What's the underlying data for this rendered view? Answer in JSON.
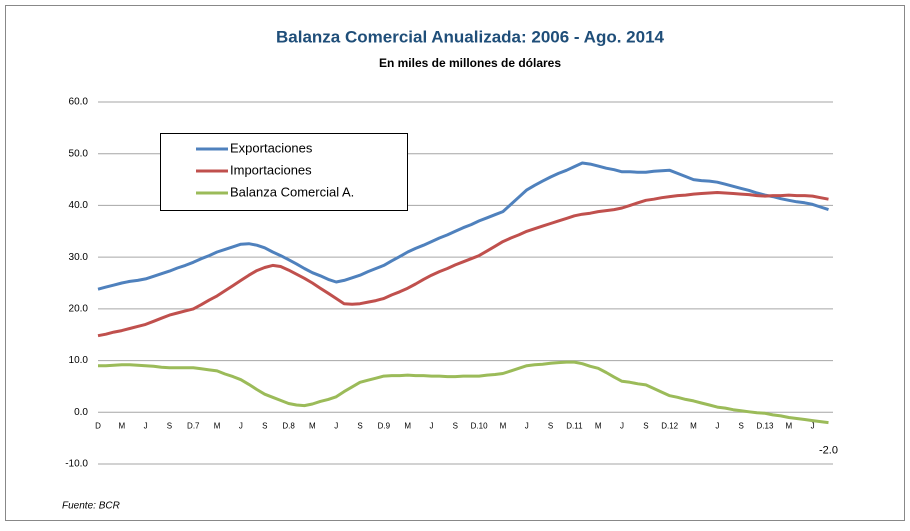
{
  "chart_data": {
    "type": "line",
    "title": "Balanza Comercial Anualizada: 2006 - Ago. 2014",
    "subtitle": "En miles de millones de dólares",
    "note": "Fuente: BCR",
    "categories": [
      "D",
      null,
      null,
      "M",
      null,
      null,
      "J",
      null,
      null,
      "S",
      null,
      null,
      "D.7",
      null,
      null,
      "M",
      null,
      null,
      "J",
      null,
      null,
      "S",
      null,
      null,
      "D.8",
      null,
      null,
      "M",
      null,
      null,
      "J",
      null,
      null,
      "S",
      null,
      null,
      "D.9",
      null,
      null,
      "M",
      null,
      null,
      "J",
      null,
      null,
      "S",
      null,
      null,
      "D.10",
      null,
      null,
      "M",
      null,
      null,
      "J",
      null,
      null,
      "S",
      null,
      null,
      "D.11",
      null,
      null,
      "M",
      null,
      null,
      "J",
      null,
      null,
      "S",
      null,
      null,
      "D.12",
      null,
      null,
      "M",
      null,
      null,
      "J",
      null,
      null,
      "S",
      null,
      null,
      "D.13",
      null,
      null,
      "M",
      null,
      null,
      "J",
      null,
      null
    ],
    "ylim": [
      -10,
      60
    ],
    "yticks": [
      {
        "value": -10,
        "label": "-10.0"
      },
      {
        "value": 0,
        "label": "0.0"
      },
      {
        "value": 10,
        "label": "10.0"
      },
      {
        "value": 20,
        "label": "20.0"
      },
      {
        "value": 30,
        "label": "30.0"
      },
      {
        "value": 40,
        "label": "40.0"
      },
      {
        "value": 50,
        "label": "50.0"
      },
      {
        "value": 60,
        "label": "60.0"
      }
    ],
    "grid": true,
    "legend": "upper left",
    "series": [
      {
        "name": "Exportaciones",
        "color": "#4f81bd",
        "values": [
          23.8,
          24.2,
          24.6,
          25.0,
          25.3,
          25.5,
          25.8,
          26.3,
          26.8,
          27.3,
          27.9,
          28.4,
          29.0,
          29.7,
          30.3,
          31.0,
          31.5,
          32.0,
          32.5,
          32.6,
          32.3,
          31.8,
          31.0,
          30.3,
          29.5,
          28.7,
          27.8,
          27.0,
          26.4,
          25.7,
          25.2,
          25.5,
          26.0,
          26.5,
          27.2,
          27.8,
          28.4,
          29.3,
          30.1,
          31.0,
          31.7,
          32.3,
          33.0,
          33.7,
          34.3,
          35.0,
          35.7,
          36.3,
          37.0,
          37.6,
          38.2,
          38.8,
          40.2,
          41.6,
          43.0,
          43.9,
          44.7,
          45.5,
          46.2,
          46.8,
          47.5,
          48.2,
          48.0,
          47.6,
          47.2,
          46.9,
          46.5,
          46.5,
          46.4,
          46.4,
          46.6,
          46.7,
          46.8,
          46.2,
          45.6,
          45.0,
          44.8,
          44.7,
          44.5,
          44.1,
          43.7,
          43.3,
          42.9,
          42.4,
          42.0,
          41.7,
          41.3,
          41.0,
          40.7,
          40.5,
          40.2,
          39.7,
          39.2
        ]
      },
      {
        "name": "Importaciones",
        "color": "#c0504d",
        "values": [
          14.8,
          15.1,
          15.5,
          15.8,
          16.2,
          16.6,
          17.0,
          17.6,
          18.2,
          18.8,
          19.2,
          19.6,
          20.0,
          20.8,
          21.7,
          22.5,
          23.5,
          24.5,
          25.5,
          26.5,
          27.4,
          28.0,
          28.4,
          28.2,
          27.5,
          26.7,
          25.9,
          25.0,
          24.0,
          23.0,
          22.0,
          21.0,
          20.9,
          21.0,
          21.3,
          21.6,
          22.0,
          22.7,
          23.3,
          24.0,
          24.8,
          25.7,
          26.5,
          27.2,
          27.8,
          28.5,
          29.1,
          29.7,
          30.3,
          31.2,
          32.1,
          33.0,
          33.7,
          34.3,
          35.0,
          35.5,
          36.0,
          36.5,
          37.0,
          37.5,
          38.0,
          38.3,
          38.5,
          38.8,
          39.0,
          39.2,
          39.5,
          40.0,
          40.5,
          41.0,
          41.2,
          41.5,
          41.7,
          41.9,
          42.0,
          42.2,
          42.3,
          42.4,
          42.5,
          42.4,
          42.3,
          42.2,
          42.1,
          41.9,
          41.8,
          41.9,
          41.9,
          42.0,
          41.9,
          41.9,
          41.8,
          41.5,
          41.2
        ]
      },
      {
        "name": "Balanza Comercial A.",
        "color": "#9bbb59",
        "values": [
          9.0,
          9.0,
          9.1,
          9.2,
          9.2,
          9.1,
          9.0,
          8.9,
          8.7,
          8.6,
          8.6,
          8.6,
          8.6,
          8.4,
          8.2,
          8.0,
          7.4,
          6.9,
          6.3,
          5.4,
          4.4,
          3.5,
          2.9,
          2.3,
          1.7,
          1.4,
          1.3,
          1.6,
          2.1,
          2.5,
          3.0,
          4.0,
          4.9,
          5.8,
          6.2,
          6.6,
          7.0,
          7.1,
          7.1,
          7.2,
          7.1,
          7.1,
          7.0,
          7.0,
          6.9,
          6.9,
          7.0,
          7.0,
          7.0,
          7.2,
          7.3,
          7.5,
          8.0,
          8.5,
          9.0,
          9.2,
          9.3,
          9.5,
          9.6,
          9.7,
          9.7,
          9.4,
          8.9,
          8.5,
          7.7,
          6.8,
          6.0,
          5.8,
          5.5,
          5.3,
          4.6,
          3.9,
          3.2,
          2.9,
          2.5,
          2.2,
          1.8,
          1.4,
          1.0,
          0.8,
          0.5,
          0.3,
          0.1,
          -0.1,
          -0.2,
          -0.5,
          -0.7,
          -1.0,
          -1.2,
          -1.4,
          -1.6,
          -1.8,
          -2.0
        ],
        "value_labels": [
          null,
          null,
          null,
          null,
          null,
          null,
          null,
          null,
          null,
          null,
          null,
          null,
          null,
          null,
          null,
          null,
          null,
          null,
          null,
          null,
          null,
          null,
          null,
          null,
          null,
          null,
          null,
          null,
          null,
          null,
          null,
          null,
          null,
          null,
          null,
          null,
          null,
          null,
          null,
          null,
          null,
          null,
          null,
          null,
          null,
          null,
          null,
          null,
          null,
          null,
          null,
          null,
          null,
          null,
          null,
          null,
          null,
          null,
          null,
          null,
          null,
          null,
          null,
          null,
          null,
          null,
          null,
          null,
          null,
          null,
          null,
          null,
          null,
          null,
          null,
          null,
          null,
          null,
          null,
          null,
          null,
          null,
          null,
          null,
          null,
          null,
          null,
          null,
          null,
          null,
          null,
          null,
          "-2.0"
        ]
      }
    ]
  }
}
